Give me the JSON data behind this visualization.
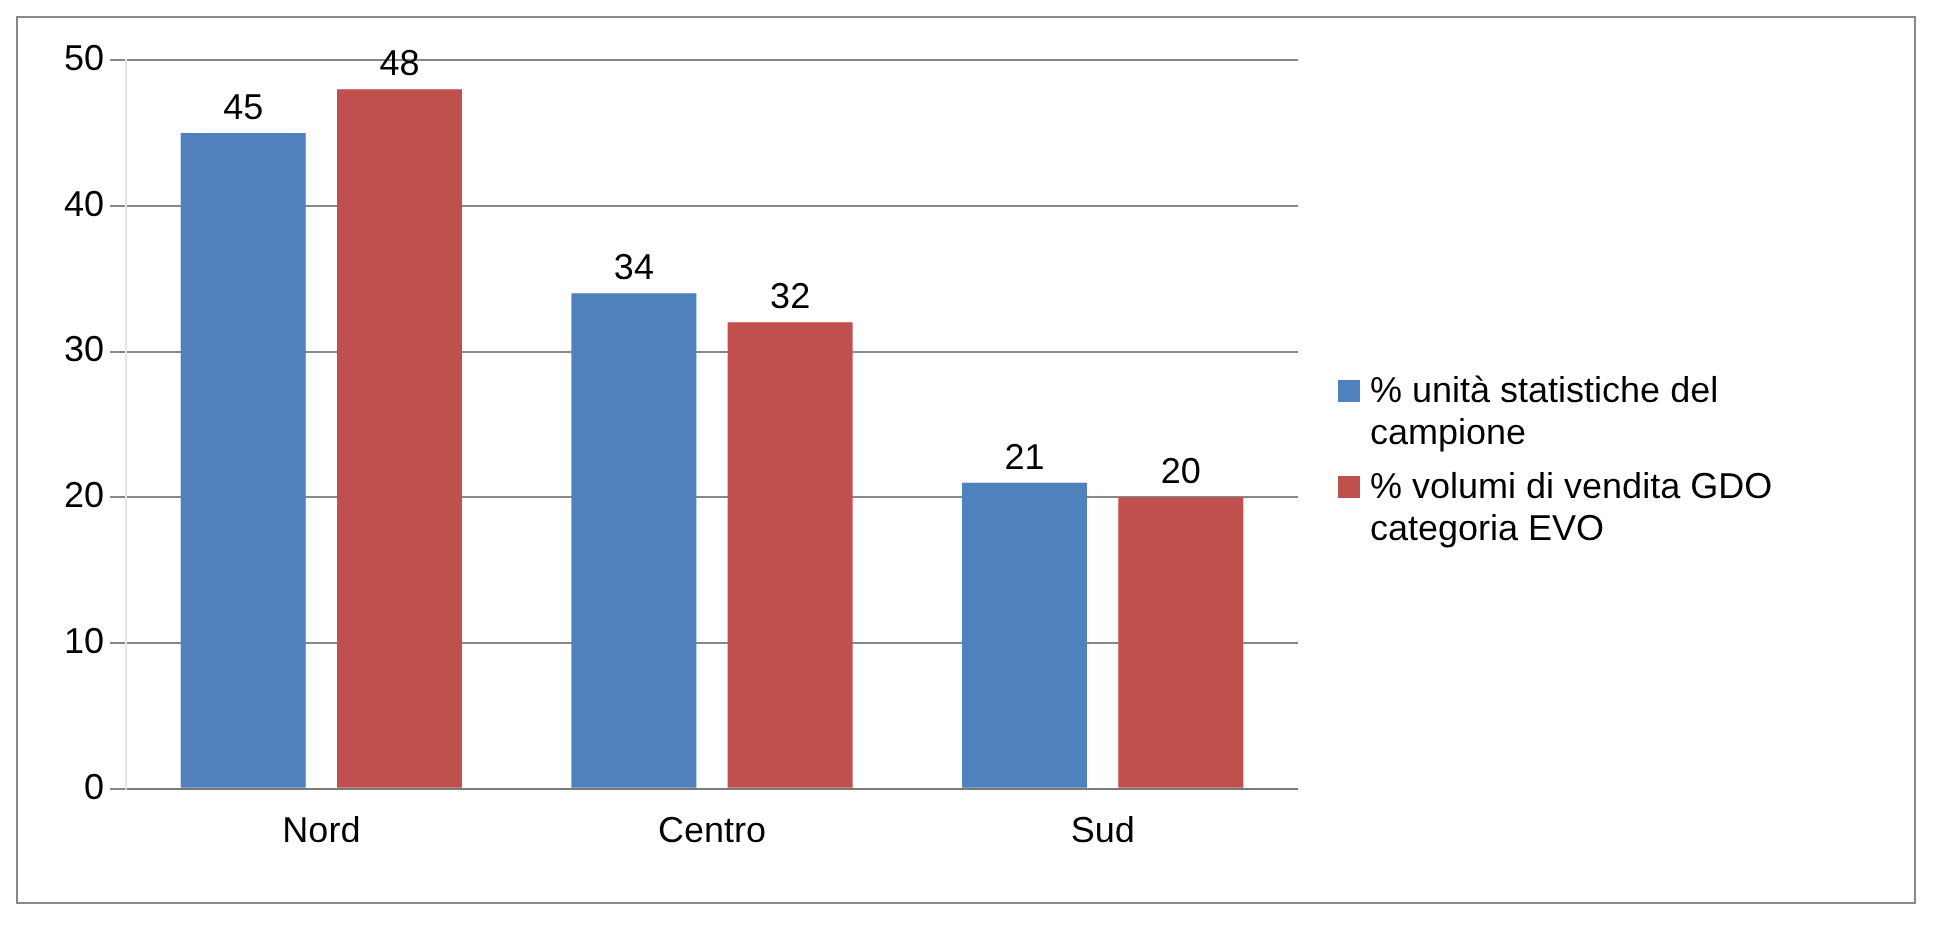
{
  "chart_data": {
    "type": "bar",
    "categories": [
      "Nord",
      "Centro",
      "Sud"
    ],
    "series": [
      {
        "name": "% unità statistiche del campione",
        "color": "#4f81bd",
        "values": [
          45,
          34,
          21
        ]
      },
      {
        "name": "% volumi di vendita GDO categoria EVO",
        "color": "#c0504d",
        "values": [
          48,
          32,
          20
        ]
      }
    ],
    "ylim": [
      0,
      50
    ],
    "yticks": [
      0,
      10,
      20,
      30,
      40,
      50
    ],
    "grid": "y",
    "legend": "right",
    "data_labels": true
  }
}
